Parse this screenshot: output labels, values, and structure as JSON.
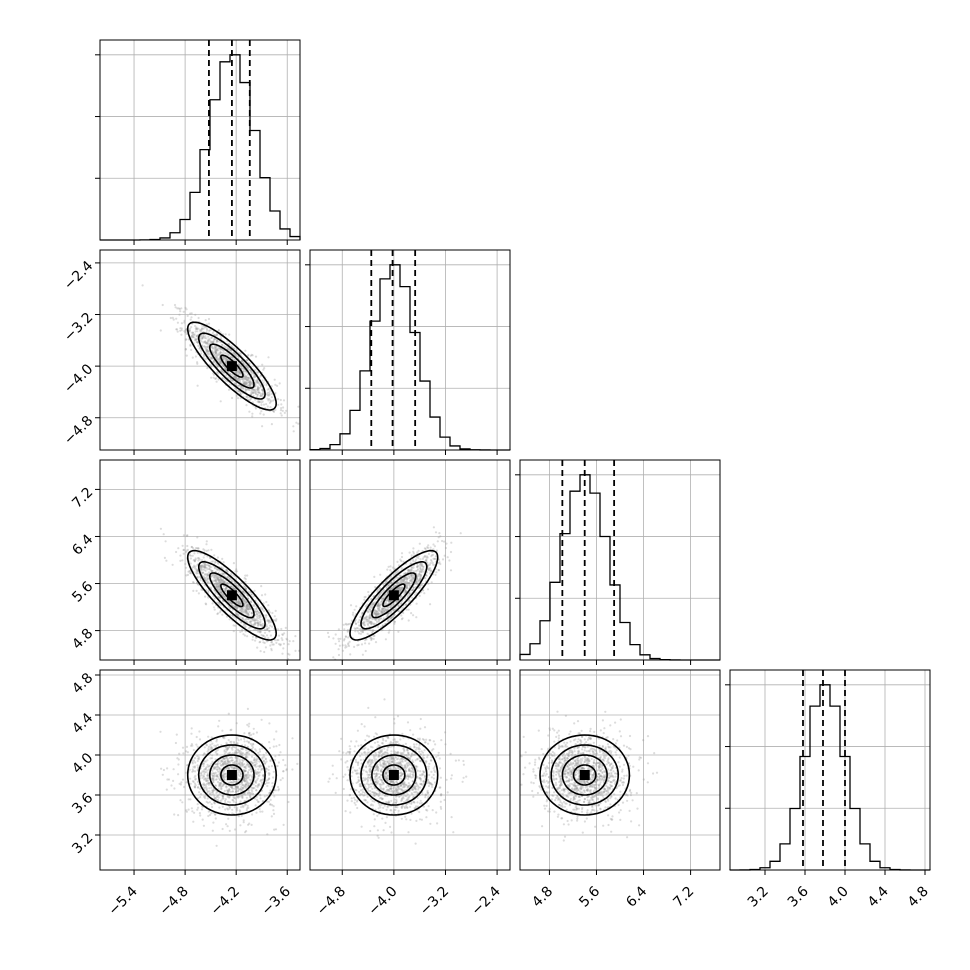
{
  "chart_data": {
    "type": "corner",
    "grid": true,
    "parameters": [
      {
        "mean": -4.25,
        "sd": 0.26,
        "range": [
          -5.8,
          -3.45
        ],
        "ticks": [
          -5.4,
          -4.8,
          -4.2,
          -3.6
        ],
        "quantiles": [
          -4.52,
          -4.25,
          -4.04
        ]
      },
      {
        "mean": -4.0,
        "sd": 0.34,
        "range": [
          -5.3,
          -2.2
        ],
        "ticks": [
          -4.8,
          -4.0,
          -3.2,
          -2.4
        ],
        "quantiles": [
          -4.35,
          -4.02,
          -3.67
        ]
      },
      {
        "mean": 5.4,
        "sd": 0.38,
        "range": [
          4.3,
          7.7
        ],
        "ticks": [
          4.8,
          5.6,
          6.4,
          7.2
        ],
        "quantiles": [
          5.02,
          5.4,
          5.9
        ]
      },
      {
        "mean": 3.8,
        "sd": 0.2,
        "range": [
          2.85,
          4.85
        ],
        "ticks": [
          3.2,
          3.6,
          4.0,
          4.4,
          4.8
        ],
        "quantiles": [
          3.58,
          3.78,
          4.0
        ]
      }
    ],
    "correlations": [
      [
        1,
        -0.85,
        -0.85,
        0.0
      ],
      [
        -0.85,
        1,
        0.85,
        0.0
      ],
      [
        -0.85,
        0.85,
        1,
        0.0
      ],
      [
        0.0,
        0.0,
        0.0,
        1
      ]
    ],
    "histogram_bins": 20,
    "contour_levels_sigma": [
      0.5,
      1.0,
      1.5,
      2.0
    ]
  }
}
